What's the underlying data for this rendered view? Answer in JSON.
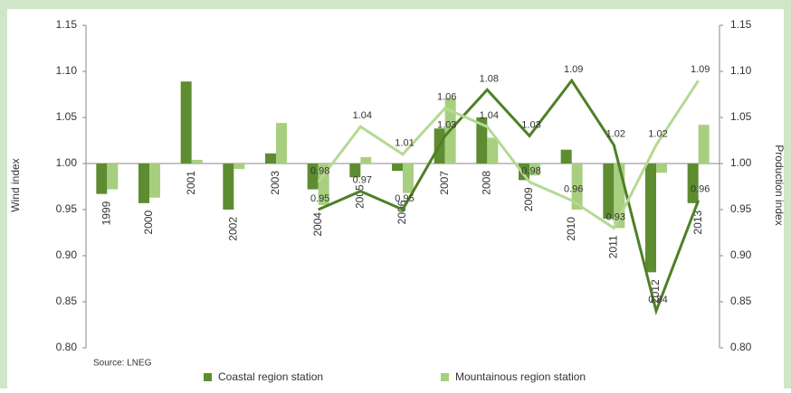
{
  "chart_data": {
    "type": "bar",
    "y_label": "Wind index",
    "y2_label": "Production index",
    "source": "Source: LNEG",
    "categories": [
      "1999",
      "2000",
      "2001",
      "2002",
      "2003",
      "2004",
      "2005",
      "2006",
      "2007",
      "2008",
      "2009",
      "2010",
      "2011",
      "2012",
      "2013"
    ],
    "series": [
      {
        "name": "Coastal region station",
        "color": "#5e8c31",
        "values": [
          0.967,
          0.957,
          1.089,
          0.95,
          1.011,
          0.972,
          0.985,
          0.992,
          1.038,
          1.05,
          0.982,
          1.015,
          0.94,
          0.882,
          0.957
        ]
      },
      {
        "name": "Mountainous region station",
        "color": "#a8cf80",
        "values": [
          0.972,
          0.963,
          1.004,
          0.994,
          1.044,
          0.955,
          1.007,
          0.968,
          1.071,
          1.028,
          0.987,
          0.95,
          0.93,
          0.99,
          1.042
        ]
      },
      {
        "type": "line",
        "axis": "y2",
        "color": "#4f7f26",
        "values": [
          null,
          null,
          null,
          null,
          null,
          0.95,
          0.97,
          0.95,
          1.03,
          1.08,
          1.03,
          1.09,
          1.02,
          0.84,
          0.96
        ]
      },
      {
        "type": "line",
        "axis": "y2",
        "color": "#b5d993",
        "values": [
          null,
          null,
          null,
          null,
          null,
          0.98,
          1.04,
          1.01,
          1.06,
          1.04,
          0.98,
          0.96,
          0.93,
          1.02,
          1.09
        ]
      }
    ],
    "ylim": [
      0.8,
      1.15
    ],
    "yticks": [
      {
        "value": 0.8,
        "label": "0.80"
      },
      0.85,
      {
        "value": 0.9,
        "label": "0.90"
      },
      0.95,
      {
        "value": 1.0,
        "label": "1.00"
      },
      1.05,
      {
        "value": 1.1,
        "label": "1.10"
      },
      1.15
    ],
    "y2lim": [
      0.8,
      1.15
    ],
    "y2ticks": [
      {
        "value": 0.8,
        "label": "0.80"
      },
      0.85,
      {
        "value": 0.9,
        "label": "0.90"
      },
      0.95,
      {
        "value": 1.0,
        "label": "1.00"
      },
      1.05,
      {
        "value": 1.1,
        "label": "1.10"
      },
      1.15
    ],
    "baseline": 1.0
  }
}
